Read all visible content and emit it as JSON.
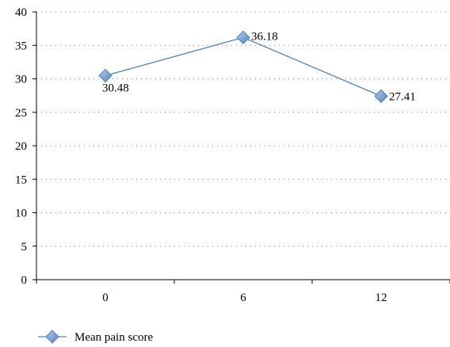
{
  "chart_data": {
    "type": "line",
    "title": "",
    "xlabel": "",
    "ylabel": "",
    "x": [
      "0",
      "6",
      "12"
    ],
    "ylim": [
      0,
      40
    ],
    "yticks": [
      0,
      5,
      10,
      15,
      20,
      25,
      30,
      35,
      40
    ],
    "grid": "horizontal dotted",
    "legend_position": "bottom-left",
    "series": [
      {
        "name": "Mean pain score",
        "values": [
          30.48,
          36.18,
          27.41
        ],
        "labels": [
          "30.48",
          "36.18",
          "27.41"
        ],
        "color": "#4f81bd",
        "marker": "diamond"
      }
    ]
  }
}
